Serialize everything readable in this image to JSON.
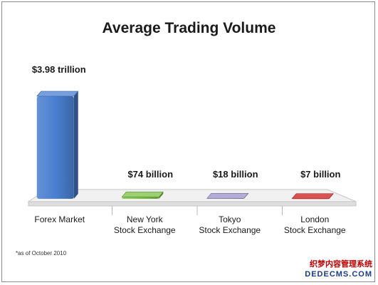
{
  "chart_data": {
    "type": "bar",
    "title": "Average Trading Volume",
    "categories": [
      "Forex Market",
      "New York\nStock Exchange",
      "Tokyo\nStock Exchange",
      "London\nStock Exchange"
    ],
    "values": [
      3980,
      74,
      18,
      7
    ],
    "value_unit": "USD billion",
    "data_labels": [
      "$3.98 trillion",
      "$74 billion",
      "$18 billion",
      "$7 billion"
    ],
    "bar_colors": [
      "#4a7fd0",
      "#7cc043",
      "#9a90c8",
      "#cc1a1a"
    ],
    "ylim": [
      0,
      4400
    ],
    "grid": false,
    "legend": "none",
    "footnote": "*as of October 2010"
  },
  "watermark": {
    "line1": "织梦内容管理系统",
    "line2": "DEDECMS.COM"
  }
}
